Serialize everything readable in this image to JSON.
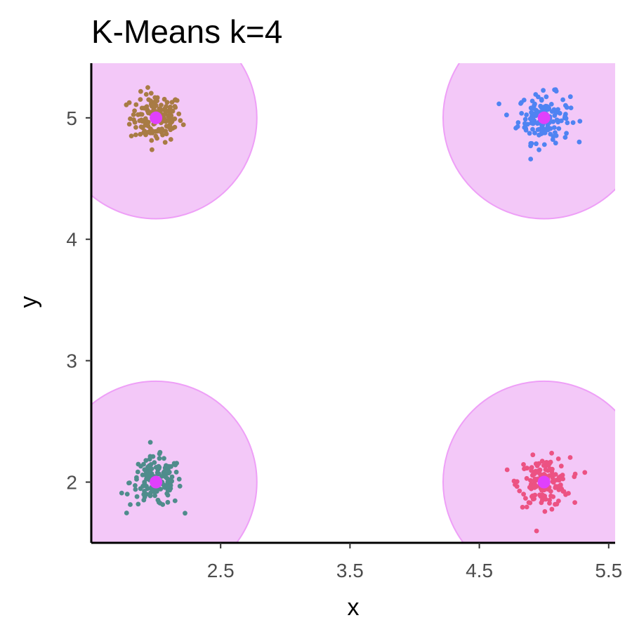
{
  "chart_data": {
    "type": "scatter",
    "title": "K-Means k=4",
    "xlabel": "x",
    "ylabel": "y",
    "xlim": [
      1.5,
      5.55
    ],
    "ylim": [
      1.5,
      5.45
    ],
    "x_ticks": [
      2.5,
      3.5,
      4.5,
      5.5
    ],
    "y_ticks": [
      2,
      3,
      4,
      5
    ],
    "x_tick_labels": [
      "2.5",
      "3.5",
      "4.5",
      "5.5"
    ],
    "y_tick_labels": [
      "2",
      "3",
      "4",
      "5"
    ],
    "grid": false,
    "legend": "none",
    "centroid_color": "#e040fb",
    "circle_fill": "#f3c8f8",
    "circle_stroke": "#ee9ff7",
    "circle_radius": 0.78,
    "points_per_cluster": 150,
    "point_spread_sd": 0.1,
    "clusters": [
      {
        "center": [
          2.0,
          5.0
        ],
        "color": "#a87b44"
      },
      {
        "center": [
          5.0,
          5.0
        ],
        "color": "#4f83f2"
      },
      {
        "center": [
          2.0,
          2.0
        ],
        "color": "#4f8c8c"
      },
      {
        "center": [
          5.0,
          2.0
        ],
        "color": "#ec5283"
      }
    ]
  }
}
